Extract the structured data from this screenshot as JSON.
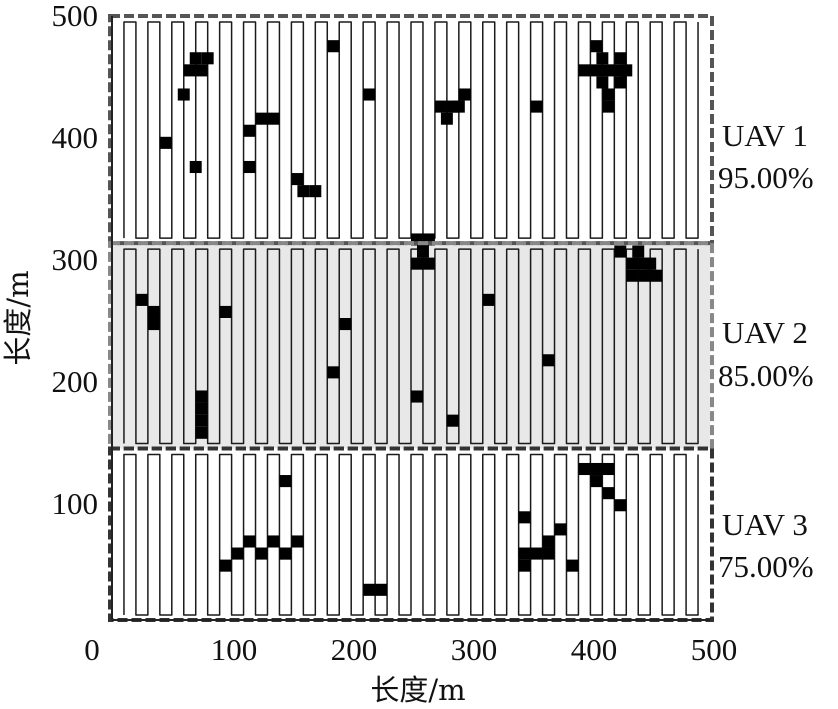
{
  "chart_data": {
    "type": "heatmap",
    "description_kind": "coverage path map",
    "xlabel": "长度/m",
    "ylabel": "长度/m",
    "xlim": [
      0,
      500
    ],
    "ylim": [
      0,
      500
    ],
    "xticks": [
      "0",
      "100",
      "200",
      "300",
      "400",
      "500"
    ],
    "yticks": [
      "100",
      "200",
      "300",
      "400",
      "500"
    ],
    "grid": false,
    "sweep": {
      "x_start": 10,
      "x_end": 490,
      "spacing": 10
    },
    "regions": [
      {
        "name": "UAV 1",
        "coverage": "95.00%",
        "y_range": [
          312,
          500
        ],
        "fill": "#ffffff",
        "border": "#555555"
      },
      {
        "name": "UAV 2",
        "coverage": "85.00%",
        "y_range": [
          142,
          312
        ],
        "fill": "#e8e8e8",
        "border": "#888888"
      },
      {
        "name": "UAV 3",
        "coverage": "75.00%",
        "y_range": [
          0,
          142
        ],
        "fill": "#ffffff",
        "border": "#333333"
      }
    ],
    "obstacle_cells_size": 10,
    "obstacle_cells": [
      [
        185,
        475
      ],
      [
        60,
        435
      ],
      [
        65,
        455
      ],
      [
        75,
        455
      ],
      [
        80,
        465
      ],
      [
        70,
        465
      ],
      [
        45,
        395
      ],
      [
        70,
        375
      ],
      [
        115,
        405
      ],
      [
        125,
        415
      ],
      [
        135,
        415
      ],
      [
        115,
        375
      ],
      [
        155,
        365
      ],
      [
        160,
        355
      ],
      [
        170,
        355
      ],
      [
        215,
        435
      ],
      [
        355,
        425
      ],
      [
        275,
        425
      ],
      [
        280,
        415
      ],
      [
        285,
        425
      ],
      [
        290,
        425
      ],
      [
        295,
        435
      ],
      [
        395,
        455
      ],
      [
        405,
        475
      ],
      [
        410,
        465
      ],
      [
        405,
        455
      ],
      [
        415,
        455
      ],
      [
        425,
        455
      ],
      [
        430,
        455
      ],
      [
        410,
        445
      ],
      [
        415,
        435
      ],
      [
        415,
        425
      ],
      [
        425,
        445
      ],
      [
        425,
        465
      ],
      [
        255,
        315
      ],
      [
        260,
        305
      ],
      [
        265,
        315
      ],
      [
        255,
        295
      ],
      [
        265,
        295
      ],
      [
        425,
        305
      ],
      [
        435,
        295
      ],
      [
        440,
        305
      ],
      [
        445,
        295
      ],
      [
        450,
        295
      ],
      [
        435,
        285
      ],
      [
        445,
        285
      ],
      [
        455,
        285
      ],
      [
        25,
        265
      ],
      [
        35,
        255
      ],
      [
        35,
        245
      ],
      [
        95,
        255
      ],
      [
        315,
        265
      ],
      [
        195,
        245
      ],
      [
        365,
        215
      ],
      [
        185,
        205
      ],
      [
        255,
        185
      ],
      [
        285,
        165
      ],
      [
        75,
        185
      ],
      [
        75,
        175
      ],
      [
        75,
        165
      ],
      [
        75,
        155
      ],
      [
        145,
        115
      ],
      [
        95,
        45
      ],
      [
        105,
        55
      ],
      [
        115,
        65
      ],
      [
        125,
        55
      ],
      [
        135,
        65
      ],
      [
        145,
        55
      ],
      [
        155,
        65
      ],
      [
        145,
        55
      ],
      [
        215,
        25
      ],
      [
        225,
        25
      ],
      [
        345,
        85
      ],
      [
        345,
        55
      ],
      [
        345,
        45
      ],
      [
        355,
        55
      ],
      [
        365,
        65
      ],
      [
        365,
        55
      ],
      [
        375,
        75
      ],
      [
        385,
        45
      ],
      [
        395,
        125
      ],
      [
        405,
        125
      ],
      [
        415,
        125
      ],
      [
        405,
        115
      ],
      [
        415,
        105
      ],
      [
        425,
        95
      ]
    ]
  },
  "labels": {
    "uav1_name": "UAV 1",
    "uav1_pct": "95.00%",
    "uav2_name": "UAV 2",
    "uav2_pct": "85.00%",
    "uav3_name": "UAV 3",
    "uav3_pct": "75.00%",
    "xlabel": "长度/m",
    "ylabel": "长度/m",
    "xt0": "0",
    "xt1": "100",
    "xt2": "200",
    "xt3": "300",
    "xt4": "400",
    "xt5": "500",
    "yt1": "100",
    "yt2": "200",
    "yt3": "300",
    "yt4": "400",
    "yt5": "500"
  }
}
